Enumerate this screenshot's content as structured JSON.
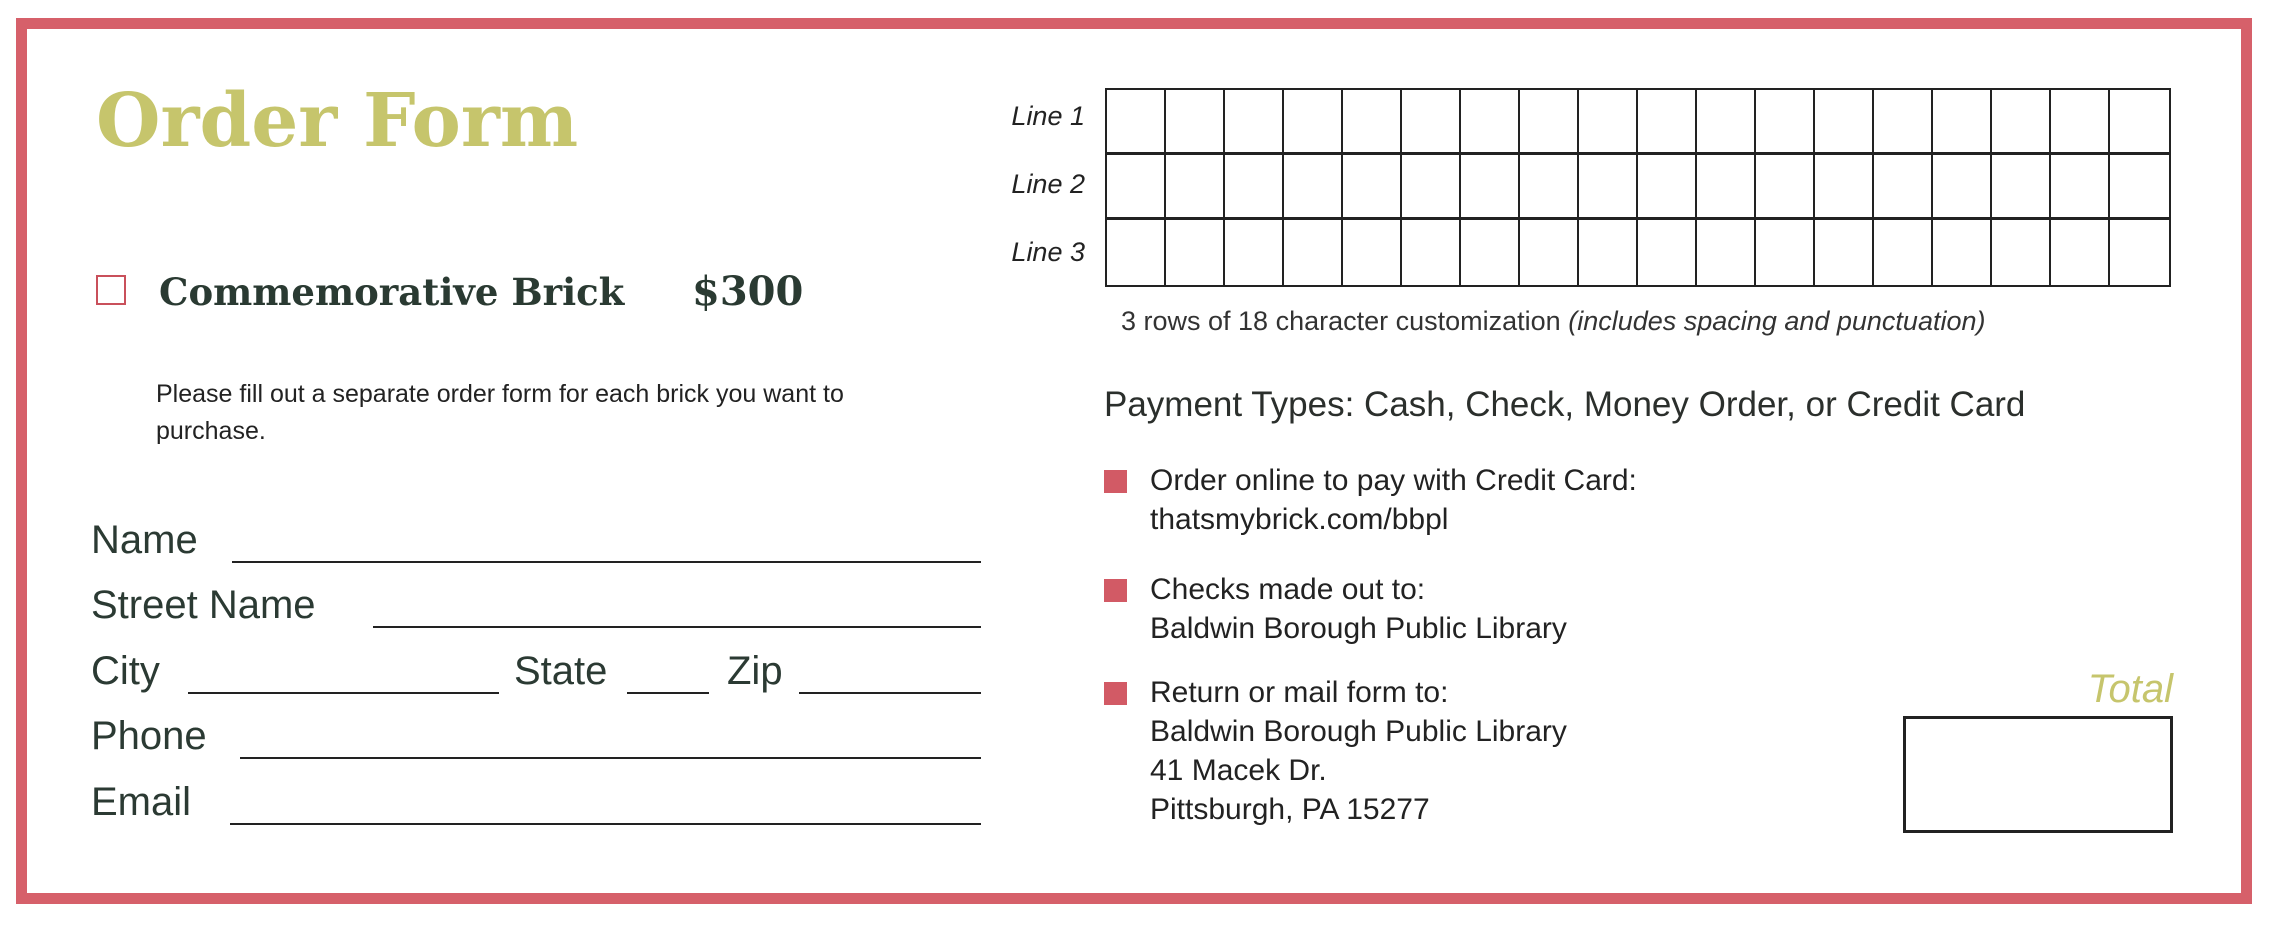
{
  "title": "Order Form",
  "product": {
    "label": "Commemorative Brick",
    "price": "$300",
    "checked": false
  },
  "note": "Please fill out a separate order form for each brick you want to purchase.",
  "fields": {
    "name": "Name",
    "street": "Street Name",
    "city": "City",
    "state": "State",
    "zip": "Zip",
    "phone": "Phone",
    "email": "Email"
  },
  "inscription": {
    "lines": [
      "Line 1",
      "Line 2",
      "Line 3"
    ],
    "caption": "3 rows of 18 character customization",
    "caption_note": "(includes spacing and punctuation)"
  },
  "payment": {
    "types": "Payment Types: Cash, Check, Money Order, or Credit Card",
    "items": [
      {
        "heading": "Order online to pay with Credit Card:",
        "lines": [
          "thatsmybrick.com/bbpl"
        ]
      },
      {
        "heading": "Checks made out to:",
        "lines": [
          "Baldwin Borough Public Library"
        ]
      },
      {
        "heading": "Return or mail form to:",
        "lines": [
          "Baldwin Borough Public Library",
          "41 Macek Dr.",
          "Pittsburgh, PA 15277"
        ]
      }
    ]
  },
  "total": {
    "label": "Total"
  },
  "colors": {
    "border": "#d6606a",
    "accent_olive": "#c6c56c",
    "bullet": "#d25a65"
  }
}
